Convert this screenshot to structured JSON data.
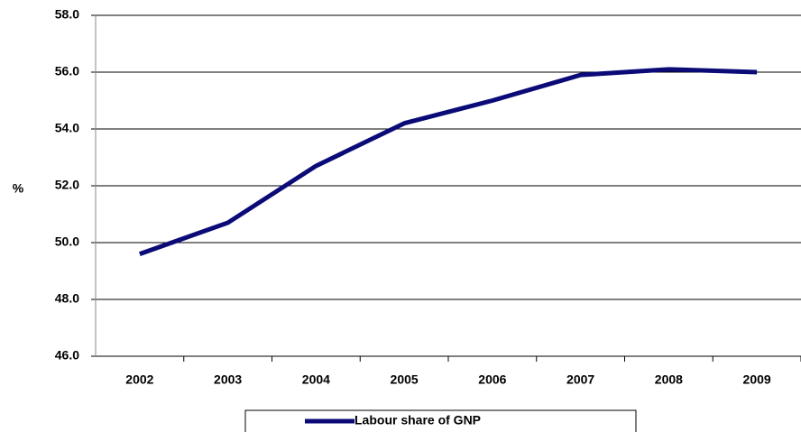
{
  "chart_data": {
    "type": "line",
    "y_label": "%",
    "categories": [
      "2002",
      "2003",
      "2004",
      "2005",
      "2006",
      "2007",
      "2008",
      "2009"
    ],
    "series": [
      {
        "name": "Labour share of GNP",
        "color": "#0b0b78",
        "values": [
          49.6,
          50.7,
          52.7,
          54.2,
          55.0,
          55.9,
          56.1,
          56.0
        ]
      }
    ],
    "ylim": [
      46,
      58
    ],
    "yticks": [
      {
        "value": 46,
        "label": "46.0"
      },
      {
        "value": 48,
        "label": "48.0"
      },
      {
        "value": 50,
        "label": "50.0"
      },
      {
        "value": 52,
        "label": "52.0"
      },
      {
        "value": 54,
        "label": "54.0"
      },
      {
        "value": 56,
        "label": "56.0"
      },
      {
        "value": 58,
        "label": "58.0"
      }
    ],
    "grid": true,
    "legend": "bottom"
  }
}
